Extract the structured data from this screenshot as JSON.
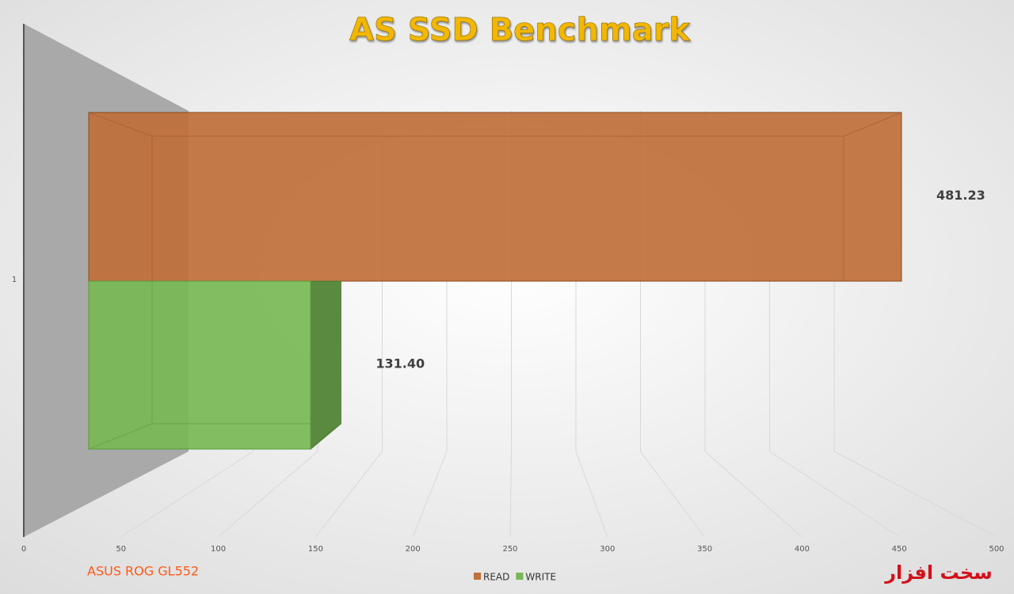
{
  "chart_data": {
    "type": "bar3d",
    "title": "AS SSD Benchmark",
    "subtitle": "ASUS ROG GL552",
    "logo": "سخت افزار",
    "categories": [
      "1"
    ],
    "series": [
      {
        "name": "READ",
        "color": "#c0703a",
        "values": [
          481.23
        ],
        "value_labels": [
          "481.23"
        ]
      },
      {
        "name": "WRITE",
        "color": "#78b856",
        "values": [
          131.4
        ],
        "value_labels": [
          "131.40"
        ]
      }
    ],
    "xlim": [
      0,
      500
    ],
    "xticks": [
      0,
      50,
      100,
      150,
      200,
      250,
      300,
      350,
      400,
      450,
      500
    ],
    "grid": true,
    "legend": "bottom"
  }
}
